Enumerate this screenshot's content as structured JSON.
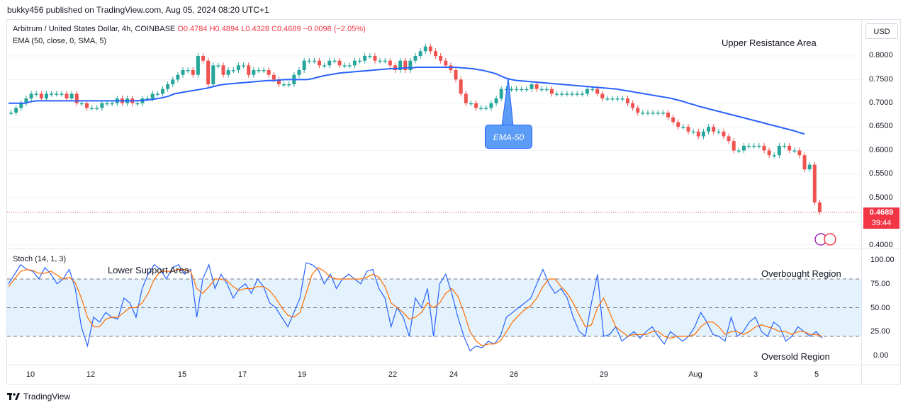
{
  "header": {
    "published": "bukky456 published on TradingView.com, Aug 05, 2024 08:20 UTC+1"
  },
  "legend": {
    "symbol": "Arbitrum / United States Dollar, 4h, COINBASE",
    "ohlc": "O0.4784  H0.4894  L0.4328  C0.4689  −0.0098 (−2.05%)",
    "ema": "EMA (50, close, 0, SMA, 5)",
    "stoch": "Stoch (14, 1, 3)"
  },
  "currency_button": "USD",
  "last_price": {
    "value": "0.4689",
    "countdown": "39:44"
  },
  "annotations": {
    "upper_resistance": "Upper Resistance Area",
    "lower_support": "Lower Support Area",
    "ema_callout": "EMA-50",
    "overbought": "Overbought Region",
    "oversold": "Oversold Region"
  },
  "footer": {
    "brand": "TradingView"
  },
  "colors": {
    "up": "#26a69a",
    "down": "#ef5350",
    "ema": "#2962ff",
    "stoch_k": "#2962ff",
    "stoch_d": "#ff6d00",
    "stoch_band": "#e3f2fd",
    "price_line": "#f23645"
  },
  "chart_data": [
    {
      "type": "candlestick",
      "title": "Arbitrum / United States Dollar, 4h, COINBASE",
      "x_ticks": [
        "10",
        "12",
        "15",
        "17",
        "19",
        "22",
        "24",
        "26",
        "29",
        "Aug",
        "3",
        "5"
      ],
      "y_ticks": [
        "0.8000",
        "0.7500",
        "0.7000",
        "0.6500",
        "0.6000",
        "0.5500",
        "0.5000",
        "0.4000"
      ],
      "ylim": [
        0.4,
        0.83
      ],
      "last_value": 0.4689,
      "close_series": [
        0.68,
        0.69,
        0.7,
        0.71,
        0.72,
        0.72,
        0.71,
        0.72,
        0.72,
        0.72,
        0.72,
        0.71,
        0.72,
        0.7,
        0.7,
        0.69,
        0.69,
        0.69,
        0.7,
        0.7,
        0.7,
        0.71,
        0.7,
        0.71,
        0.7,
        0.7,
        0.71,
        0.71,
        0.72,
        0.72,
        0.73,
        0.74,
        0.75,
        0.76,
        0.77,
        0.77,
        0.76,
        0.8,
        0.79,
        0.74,
        0.78,
        0.78,
        0.76,
        0.77,
        0.77,
        0.78,
        0.78,
        0.76,
        0.77,
        0.77,
        0.77,
        0.76,
        0.75,
        0.74,
        0.74,
        0.74,
        0.76,
        0.77,
        0.79,
        0.79,
        0.79,
        0.78,
        0.78,
        0.79,
        0.79,
        0.78,
        0.78,
        0.78,
        0.79,
        0.79,
        0.8,
        0.8,
        0.79,
        0.79,
        0.79,
        0.78,
        0.77,
        0.79,
        0.77,
        0.79,
        0.8,
        0.81,
        0.82,
        0.81,
        0.8,
        0.79,
        0.78,
        0.77,
        0.75,
        0.72,
        0.7,
        0.7,
        0.69,
        0.69,
        0.69,
        0.7,
        0.71,
        0.73,
        0.73,
        0.73,
        0.73,
        0.73,
        0.73,
        0.74,
        0.73,
        0.73,
        0.73,
        0.72,
        0.72,
        0.72,
        0.72,
        0.72,
        0.72,
        0.72,
        0.73,
        0.73,
        0.72,
        0.71,
        0.71,
        0.71,
        0.71,
        0.71,
        0.7,
        0.69,
        0.68,
        0.68,
        0.68,
        0.68,
        0.68,
        0.68,
        0.67,
        0.66,
        0.65,
        0.65,
        0.64,
        0.64,
        0.63,
        0.64,
        0.65,
        0.64,
        0.64,
        0.63,
        0.62,
        0.6,
        0.6,
        0.61,
        0.61,
        0.61,
        0.61,
        0.6,
        0.59,
        0.59,
        0.61,
        0.61,
        0.6,
        0.6,
        0.59,
        0.56,
        0.57,
        0.49,
        0.47
      ],
      "ema50_series": [
        0.7,
        0.7,
        0.7,
        0.7,
        0.703,
        0.705,
        0.705,
        0.705,
        0.705,
        0.705,
        0.705,
        0.705,
        0.705,
        0.705,
        0.705,
        0.705,
        0.705,
        0.705,
        0.705,
        0.705,
        0.705,
        0.705,
        0.705,
        0.705,
        0.706,
        0.707,
        0.708,
        0.71,
        0.712,
        0.715,
        0.72,
        0.722,
        0.724,
        0.726,
        0.728,
        0.73,
        0.732,
        0.735,
        0.738,
        0.74,
        0.741,
        0.742,
        0.743,
        0.744,
        0.745,
        0.746,
        0.747,
        0.748,
        0.748,
        0.749,
        0.75,
        0.75,
        0.75,
        0.75,
        0.75,
        0.752,
        0.755,
        0.758,
        0.76,
        0.762,
        0.764,
        0.765,
        0.766,
        0.767,
        0.768,
        0.769,
        0.77,
        0.771,
        0.772,
        0.773,
        0.773,
        0.774,
        0.775,
        0.775,
        0.776,
        0.776,
        0.776,
        0.776,
        0.776,
        0.776,
        0.776,
        0.776,
        0.775,
        0.774,
        0.773,
        0.771,
        0.769,
        0.766,
        0.763,
        0.758,
        0.753,
        0.75,
        0.748,
        0.747,
        0.746,
        0.745,
        0.744,
        0.743,
        0.742,
        0.741,
        0.74,
        0.739,
        0.738,
        0.737,
        0.736,
        0.735,
        0.734,
        0.733,
        0.732,
        0.731,
        0.73,
        0.728,
        0.726,
        0.724,
        0.722,
        0.72,
        0.718,
        0.716,
        0.714,
        0.712,
        0.71,
        0.707,
        0.704,
        0.7,
        0.697,
        0.693,
        0.69,
        0.687,
        0.684,
        0.681,
        0.678,
        0.675,
        0.672,
        0.669,
        0.666,
        0.663,
        0.66,
        0.657,
        0.654,
        0.651,
        0.648,
        0.645,
        0.642,
        0.638,
        0.635
      ]
    },
    {
      "type": "line",
      "title": "Stoch (14, 1, 3)",
      "y_ticks": [
        "100.00",
        "75.00",
        "50.00",
        "25.00",
        "0.00"
      ],
      "ylim": [
        0,
        100
      ],
      "bands": {
        "overbought": 80,
        "middle": 50,
        "oversold": 20
      },
      "series": [
        {
          "values": [
            75,
            85,
            95,
            90,
            88,
            80,
            92,
            85,
            75,
            80,
            90,
            70,
            30,
            10,
            40,
            35,
            45,
            40,
            38,
            60,
            55,
            40,
            70,
            85,
            95,
            90,
            80,
            92,
            95,
            85,
            90,
            40,
            80,
            95,
            70,
            85,
            75,
            60,
            70,
            75,
            65,
            80,
            72,
            55,
            50,
            40,
            30,
            45,
            60,
            97,
            95,
            90,
            75,
            85,
            70,
            80,
            85,
            80,
            75,
            88,
            90,
            70,
            60,
            30,
            50,
            40,
            20,
            60,
            50,
            70,
            20,
            75,
            85,
            65,
            40,
            20,
            5,
            10,
            8,
            15,
            12,
            20,
            40,
            45,
            50,
            55,
            60,
            75,
            90,
            75,
            65,
            70,
            60,
            40,
            25,
            20,
            55,
            85,
            20,
            22,
            30,
            15,
            20,
            25,
            18,
            25,
            30,
            20,
            12,
            25,
            20,
            15,
            20,
            30,
            45,
            35,
            22,
            20,
            15,
            40,
            20,
            25,
            35,
            40,
            25,
            20,
            35,
            30,
            15,
            20,
            30,
            25,
            20,
            25,
            18
          ]
        },
        {
          "values": [
            72,
            80,
            88,
            90,
            89,
            86,
            86,
            88,
            84,
            80,
            82,
            76,
            60,
            40,
            30,
            30,
            38,
            40,
            40,
            45,
            50,
            50,
            55,
            65,
            80,
            88,
            88,
            88,
            90,
            90,
            88,
            70,
            65,
            72,
            80,
            80,
            78,
            72,
            68,
            70,
            70,
            72,
            72,
            68,
            60,
            50,
            42,
            40,
            45,
            65,
            85,
            92,
            88,
            82,
            80,
            80,
            80,
            80,
            80,
            82,
            85,
            82,
            72,
            55,
            50,
            45,
            38,
            40,
            45,
            55,
            50,
            55,
            65,
            70,
            62,
            45,
            25,
            15,
            10,
            12,
            12,
            15,
            25,
            35,
            42,
            48,
            52,
            60,
            72,
            80,
            80,
            72,
            65,
            55,
            42,
            30,
            32,
            50,
            60,
            45,
            30,
            25,
            20,
            22,
            22,
            22,
            25,
            25,
            20,
            18,
            20,
            20,
            20,
            22,
            30,
            35,
            35,
            30,
            22,
            25,
            25,
            22,
            25,
            30,
            32,
            30,
            28,
            25,
            25,
            22,
            25,
            25,
            22,
            22,
            20
          ]
        }
      ]
    }
  ]
}
